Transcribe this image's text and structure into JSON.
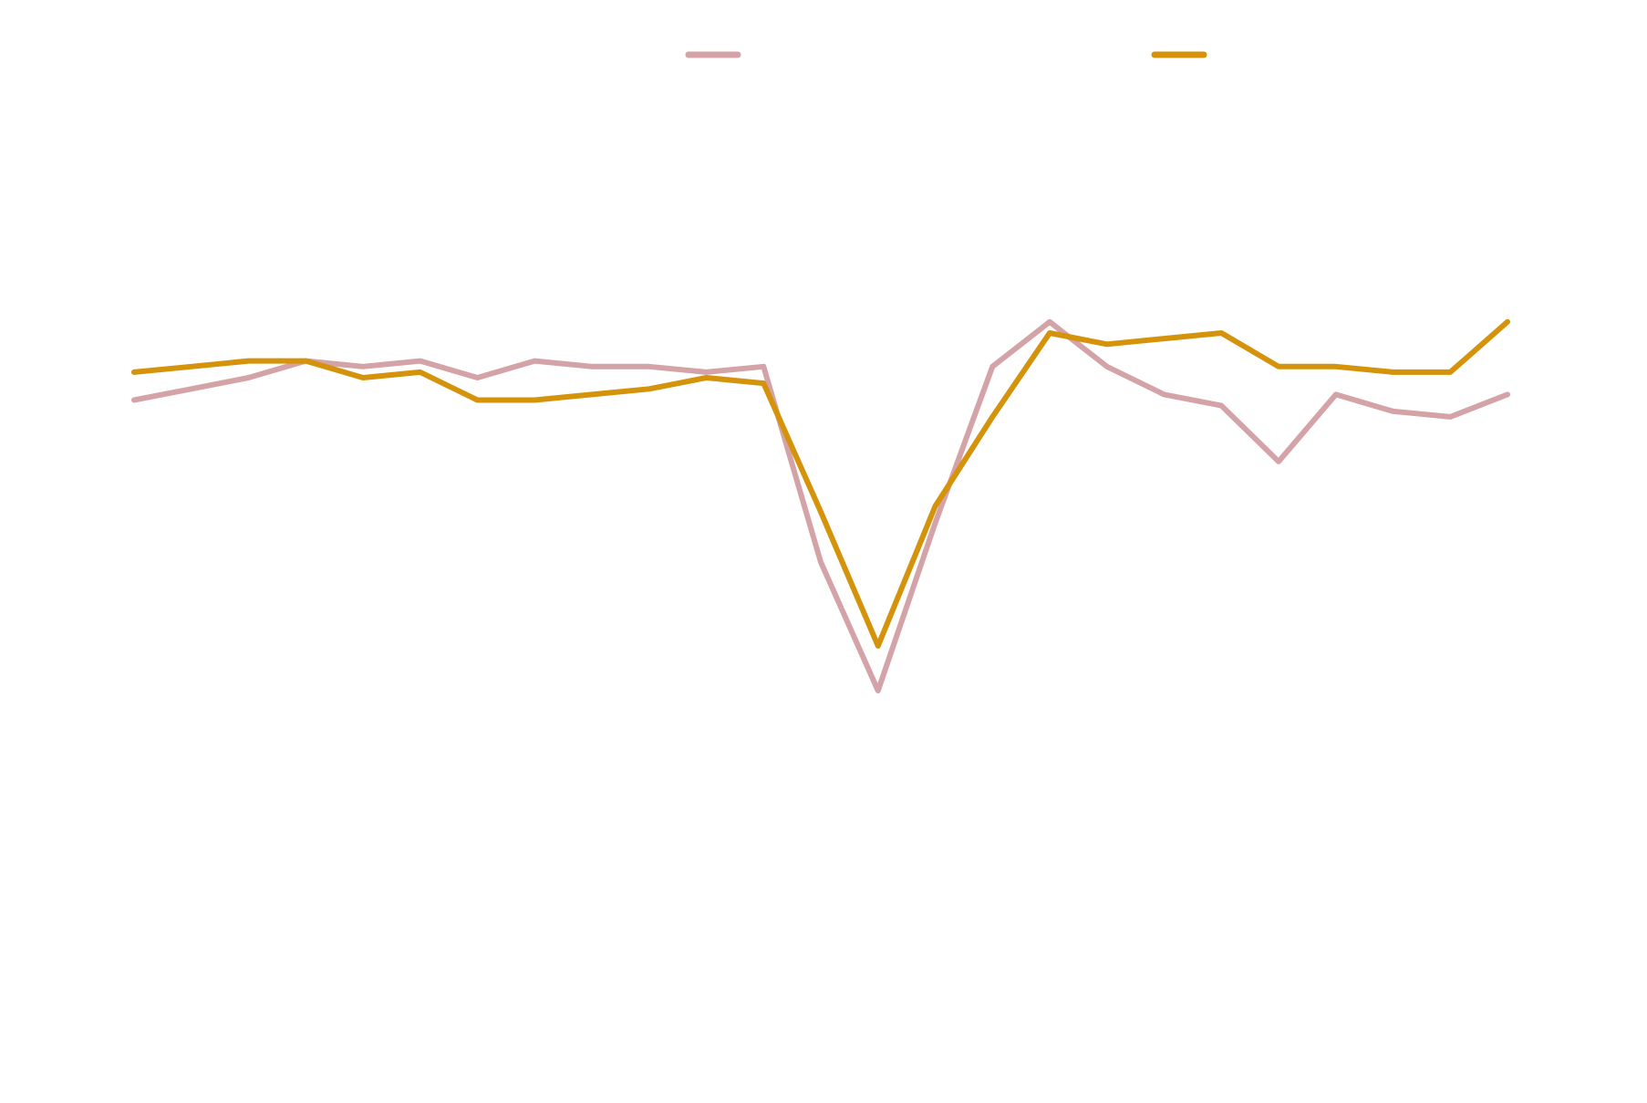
{
  "chart_data": {
    "type": "line",
    "title": "",
    "xlabel": "",
    "ylabel": "",
    "grid": false,
    "legend_position": "top",
    "ylim": [
      -110,
      50
    ],
    "x": [
      0,
      1,
      2,
      3,
      4,
      5,
      6,
      7,
      8,
      9,
      10,
      11,
      12,
      13,
      14,
      15,
      16,
      17,
      18,
      19,
      20,
      21,
      22,
      23,
      24
    ],
    "series": [
      {
        "color": "#d4a3a8",
        "values": [
          -2,
          0,
          2,
          5,
          4,
          5,
          2,
          5,
          4,
          4,
          3,
          4,
          -31,
          -54,
          -24,
          4,
          12,
          4,
          -1,
          -3,
          -13,
          -1,
          -4,
          -5,
          -1
        ]
      },
      {
        "color": "#d4930a",
        "values": [
          3,
          4,
          5,
          5,
          2,
          3,
          -2,
          -2,
          -1,
          0,
          2,
          1,
          -22,
          -46,
          -21,
          -5,
          10,
          8,
          9,
          10,
          4,
          4,
          3,
          3,
          12
        ]
      }
    ]
  }
}
